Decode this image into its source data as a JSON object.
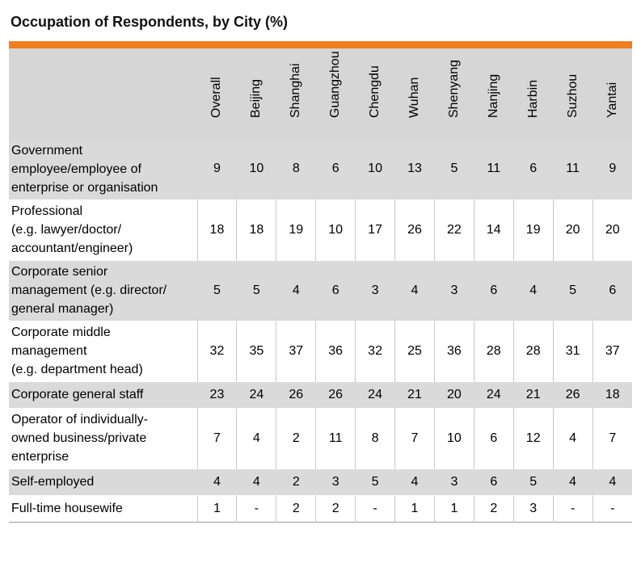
{
  "title": "Occupation of Respondents, by City (%)",
  "chart_data": {
    "type": "table",
    "title": "Occupation of Respondents, by City (%)",
    "columns": [
      "Overall",
      "Beijing",
      "Shanghai",
      "Guangzhou",
      "Chengdu",
      "Wuhan",
      "Shenyang",
      "Nanjing",
      "Harbin",
      "Suzhou",
      "Yantai"
    ],
    "rows": [
      {
        "label": "Government employee/employee of enterprise or organisation",
        "values": [
          "9",
          "10",
          "8",
          "6",
          "10",
          "13",
          "5",
          "11",
          "6",
          "11",
          "9"
        ]
      },
      {
        "label": "Professional (e.g. lawyer/doctor/ accountant/engineer)",
        "values": [
          "18",
          "18",
          "19",
          "10",
          "17",
          "26",
          "22",
          "14",
          "19",
          "20",
          "20"
        ]
      },
      {
        "label": "Corporate senior management (e.g. director/ general manager)",
        "values": [
          "5",
          "5",
          "4",
          "6",
          "3",
          "4",
          "3",
          "6",
          "4",
          "5",
          "6"
        ]
      },
      {
        "label": "Corporate middle management (e.g. department head)",
        "values": [
          "32",
          "35",
          "37",
          "36",
          "32",
          "25",
          "36",
          "28",
          "28",
          "31",
          "37"
        ]
      },
      {
        "label": "Corporate general staff",
        "values": [
          "23",
          "24",
          "26",
          "26",
          "24",
          "21",
          "20",
          "24",
          "21",
          "26",
          "18"
        ]
      },
      {
        "label": "Operator of individually-owned business/private enterprise",
        "values": [
          "7",
          "4",
          "2",
          "11",
          "8",
          "7",
          "10",
          "6",
          "12",
          "4",
          "7"
        ]
      },
      {
        "label": "Self-employed",
        "values": [
          "4",
          "4",
          "2",
          "3",
          "5",
          "4",
          "3",
          "6",
          "5",
          "4",
          "4"
        ]
      },
      {
        "label": "Full-time housewife",
        "values": [
          "1",
          "-",
          "2",
          "2",
          "-",
          "1",
          "1",
          "2",
          "3",
          "-",
          "-"
        ]
      }
    ],
    "label_lines": [
      [
        "Government",
        "employee/employee of",
        "enterprise or organisation"
      ],
      [
        "Professional",
        "(e.g. lawyer/doctor/",
        "accountant/engineer)"
      ],
      [
        "Corporate senior",
        "management (e.g. director/",
        "general manager)"
      ],
      [
        "Corporate middle",
        "management",
        "(e.g. department head)"
      ],
      [
        "Corporate general staff"
      ],
      [
        "Operator of individually-",
        "owned business/private",
        "enterprise"
      ],
      [
        "Self-employed"
      ],
      [
        "Full-time housewife"
      ]
    ],
    "header_color": "#d6d6d6",
    "accent_color": "#f07d1e",
    "shaded_row_color": "#dadada"
  }
}
